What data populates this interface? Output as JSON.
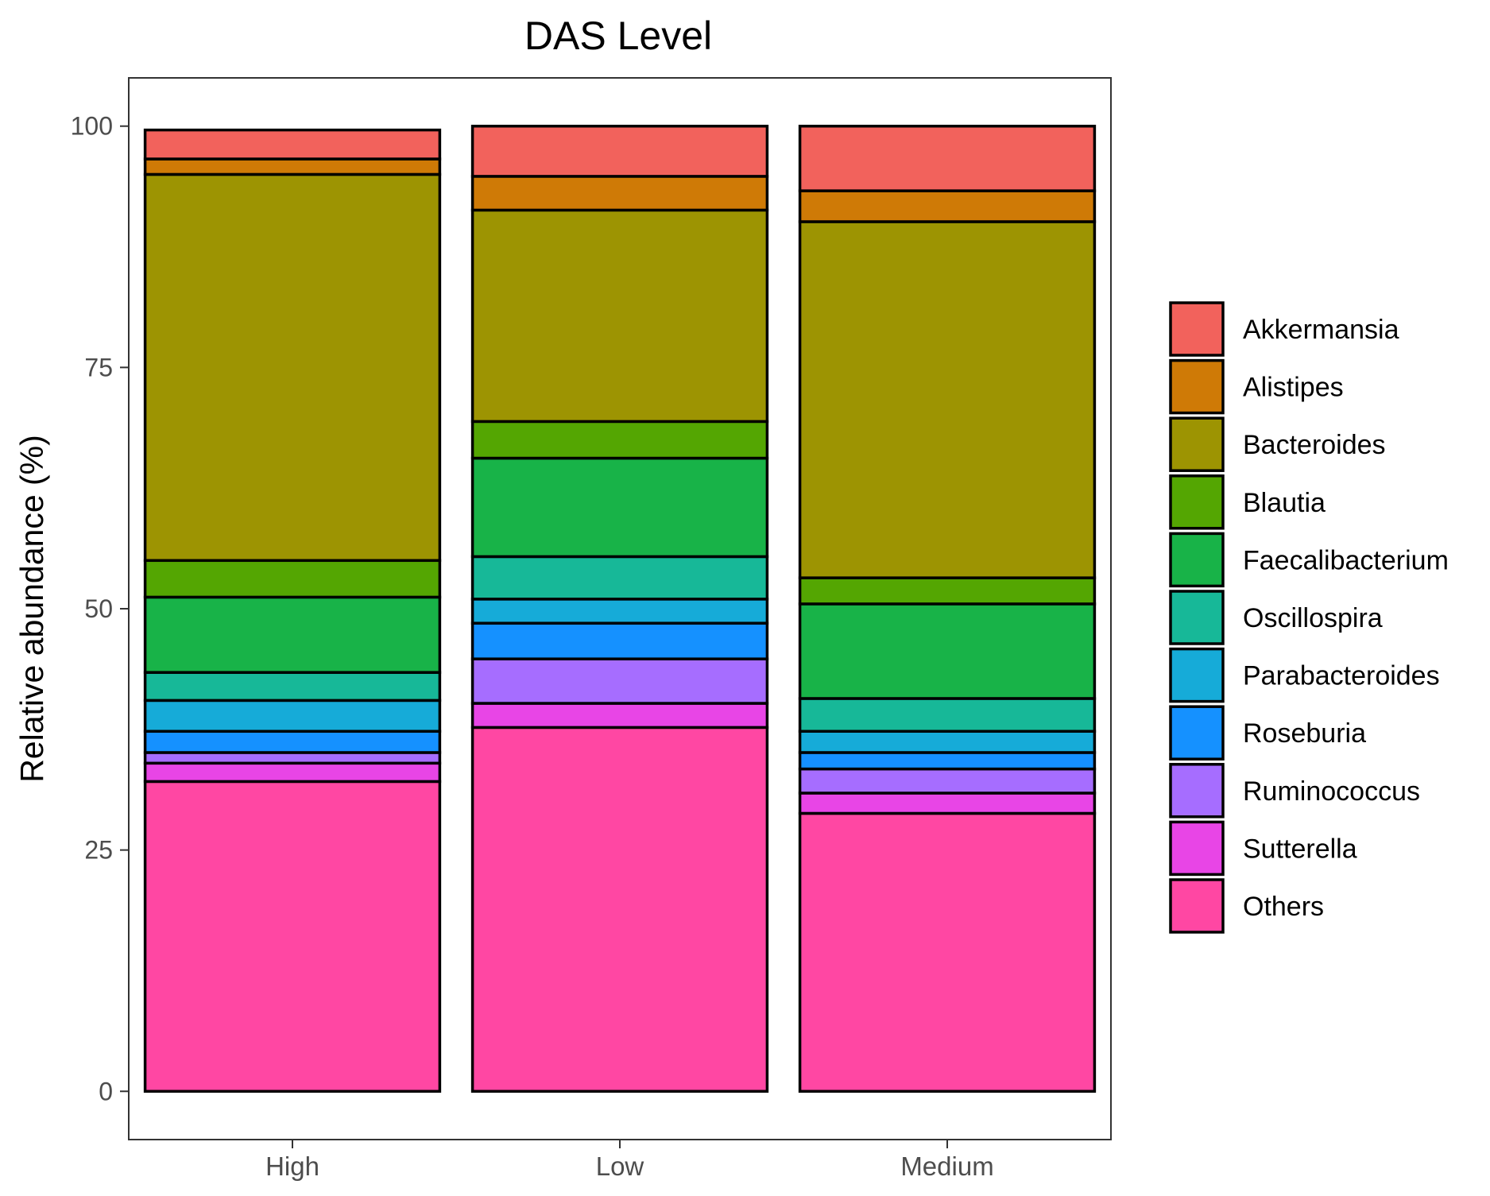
{
  "chart_data": {
    "type": "bar",
    "stacked": true,
    "title": "DAS Level",
    "xlabel": "",
    "ylabel": "Relative abundance (%)",
    "ylim": [
      -5,
      105
    ],
    "yticks": [
      0,
      25,
      50,
      75,
      100
    ],
    "categories": [
      "High",
      "Low",
      "Medium"
    ],
    "legend_position": "right",
    "grid": false,
    "series": [
      {
        "name": "Others",
        "color": "#FF47A3",
        "values": [
          32.1,
          37.7,
          28.8
        ]
      },
      {
        "name": "Sutterella",
        "color": "#E845E6",
        "values": [
          1.9,
          2.5,
          2.1
        ]
      },
      {
        "name": "Ruminococcus",
        "color": "#A66DFF",
        "values": [
          1.1,
          4.6,
          2.5
        ]
      },
      {
        "name": "Roseburia",
        "color": "#1591FF",
        "values": [
          2.2,
          3.7,
          1.7
        ]
      },
      {
        "name": "Parabacteroides",
        "color": "#16ABD8",
        "values": [
          3.2,
          2.5,
          2.2
        ]
      },
      {
        "name": "Oscillospira",
        "color": "#17B898",
        "values": [
          2.9,
          4.4,
          3.4
        ]
      },
      {
        "name": "Faecalibacterium",
        "color": "#18B348",
        "values": [
          7.8,
          10.2,
          9.8
        ]
      },
      {
        "name": "Blautia",
        "color": "#54A602",
        "values": [
          3.8,
          3.8,
          2.7
        ]
      },
      {
        "name": "Bacteroides",
        "color": "#9D9402",
        "values": [
          40.0,
          21.9,
          36.9
        ]
      },
      {
        "name": "Alistipes",
        "color": "#CF7A06",
        "values": [
          1.6,
          3.5,
          3.2
        ]
      },
      {
        "name": "Akkermansia",
        "color": "#F2625C",
        "values": [
          3.0,
          5.2,
          6.7
        ]
      }
    ]
  }
}
